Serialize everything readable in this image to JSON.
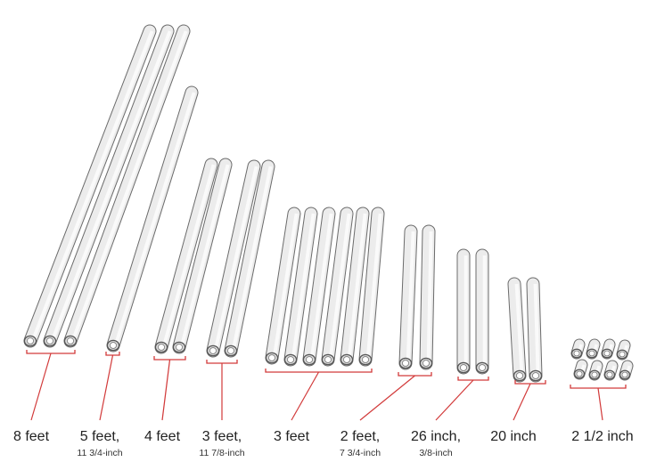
{
  "groups": [
    {
      "label": "8 feet"
    },
    {
      "label": "5 feet,",
      "sublabel": "11 3/4-inch"
    },
    {
      "label": "4 feet"
    },
    {
      "label": "3 feet,",
      "sublabel": "11 7/8-inch"
    },
    {
      "label": "3 feet"
    },
    {
      "label": "2 feet,",
      "sublabel": "7 3/4-inch"
    },
    {
      "label": "26 inch,",
      "sublabel": "3/8-inch"
    },
    {
      "label": "20 inch"
    },
    {
      "label": "2 1/2 inch"
    }
  ]
}
